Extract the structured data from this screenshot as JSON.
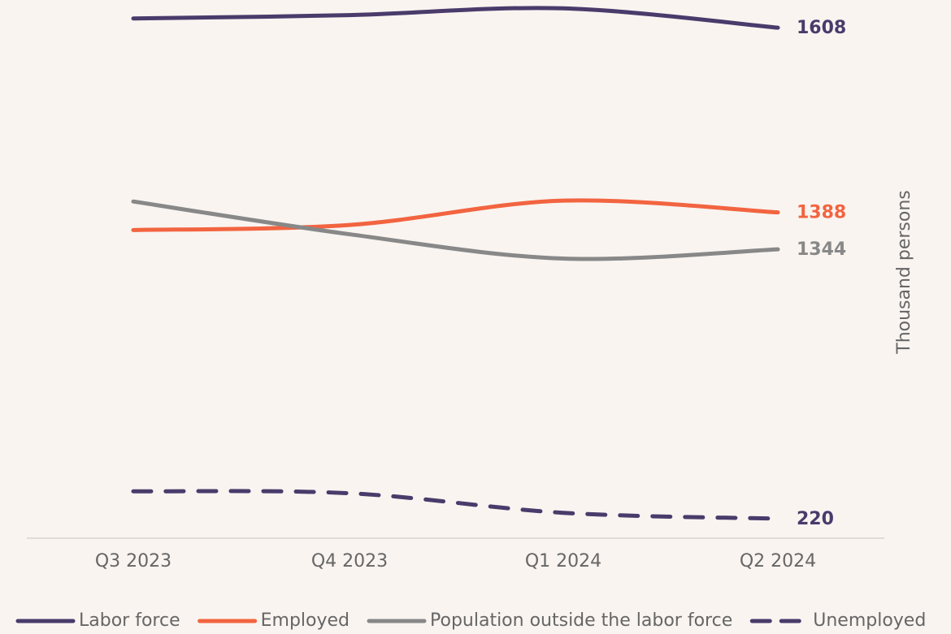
{
  "chart_data": {
    "type": "line",
    "y_label": "Thousand persons",
    "categories": [
      "Q3 2023",
      "Q4 2023",
      "Q1 2024",
      "Q2 2024"
    ],
    "ylim": [
      1000,
      1640
    ],
    "y2lim": [
      200,
      750
    ],
    "series": [
      {
        "name": "Labor force",
        "color": "#4a3b6b",
        "values": [
          1619,
          1623,
          1631,
          1608
        ]
      },
      {
        "name": "Employed",
        "color": "#f26440",
        "values": [
          1367,
          1373,
          1402,
          1388
        ]
      },
      {
        "name": "Population outside the labor force",
        "color": "#888888",
        "values": [
          1401,
          1362,
          1333,
          1344
        ]
      },
      {
        "name": "Unemployed",
        "color": "#4a3b6b",
        "dashed": true,
        "axis": "y2",
        "values": [
          248,
          246,
          226,
          220
        ]
      }
    ]
  }
}
